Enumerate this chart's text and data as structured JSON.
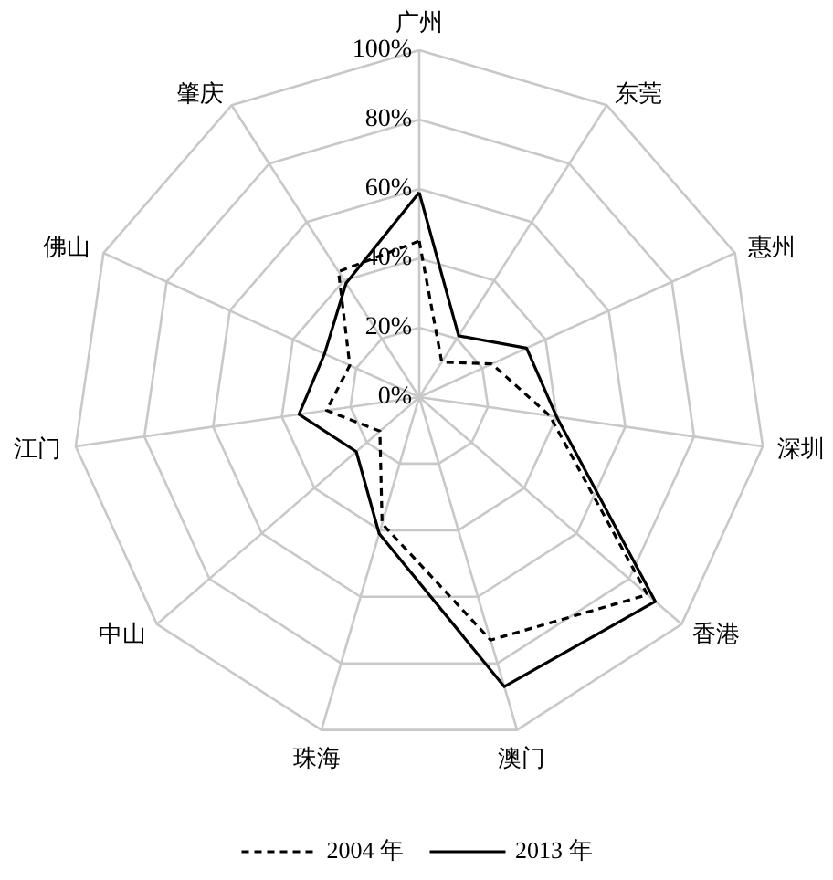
{
  "chart_data": {
    "type": "radar",
    "categories": [
      "广州",
      "东莞",
      "惠州",
      "深圳",
      "香港",
      "澳门",
      "珠海",
      "中山",
      "江门",
      "佛山",
      "肇庆"
    ],
    "series": [
      {
        "name": "2004 年",
        "color": "#000000",
        "line_style": "dashed",
        "values": [
          45,
          12,
          23,
          38,
          87,
          73,
          38,
          15,
          27,
          22,
          43
        ]
      },
      {
        "name": "2013 年",
        "color": "#000000",
        "line_style": "solid",
        "values": [
          59,
          21,
          34,
          40,
          90,
          87,
          41,
          24,
          35,
          30,
          39
        ]
      }
    ],
    "ylim": [
      0,
      100
    ],
    "yticks": [
      {
        "value": 0,
        "label": "0%"
      },
      {
        "value": 20,
        "label": "20%"
      },
      {
        "value": 40,
        "label": "40%"
      },
      {
        "value": 60,
        "label": "60%"
      },
      {
        "value": 80,
        "label": "80%"
      },
      {
        "value": 100,
        "label": "100%"
      }
    ],
    "grid": true,
    "legend": "bottom"
  }
}
